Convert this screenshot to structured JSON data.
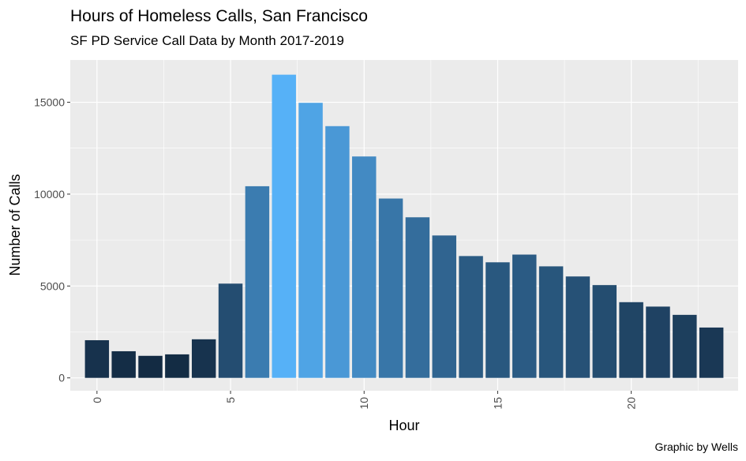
{
  "chart_data": {
    "type": "bar",
    "title": "Hours of Homeless Calls, San Francisco",
    "subtitle": "SF PD Service Call Data by Month 2017-2019",
    "xlabel": "Hour",
    "ylabel": "Number of Calls",
    "caption": "Graphic by Wells",
    "x": [
      0,
      1,
      2,
      3,
      4,
      5,
      6,
      7,
      8,
      9,
      10,
      11,
      12,
      13,
      14,
      15,
      16,
      17,
      18,
      19,
      20,
      21,
      22,
      23
    ],
    "values": [
      2050,
      1450,
      1200,
      1280,
      2100,
      5130,
      10430,
      16500,
      14970,
      13700,
      12050,
      9760,
      8740,
      7750,
      6630,
      6290,
      6710,
      6070,
      5520,
      5050,
      4120,
      3880,
      3430,
      2740
    ],
    "xlim": [
      -1,
      24
    ],
    "ylim": [
      -700,
      17300
    ],
    "x_ticks": [
      0,
      5,
      10,
      15,
      20
    ],
    "x_tick_labels": [
      "0",
      "5",
      "10",
      "15",
      "20"
    ],
    "y_ticks": [
      0,
      5000,
      10000,
      15000
    ],
    "y_tick_labels": [
      "0",
      "5000",
      "10000",
      "15000"
    ],
    "fill_scale": {
      "low": "#132b43",
      "high": "#56b1f7"
    },
    "background": "#ebebeb",
    "grid": true,
    "legend": "none"
  }
}
